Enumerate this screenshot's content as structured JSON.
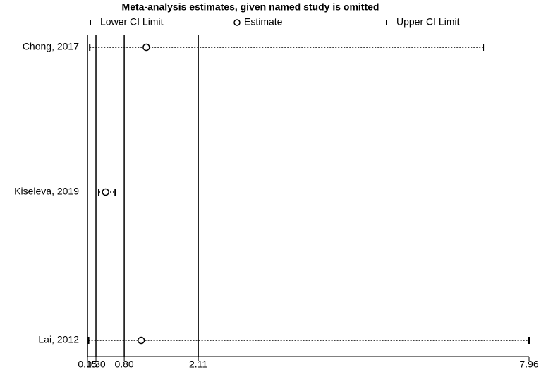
{
  "chart_data": {
    "type": "sensitivity",
    "title": "Meta-analysis estimates, given named study is omitted",
    "categories": [
      "Chong, 2017",
      "Kiseleva, 2019",
      "Lai, 2012"
    ],
    "series": [
      {
        "name": "Lower CI Limit",
        "color": "#000000",
        "values": [
          0.19,
          0.35,
          0.17
        ]
      },
      {
        "name": "Estimate",
        "color": "#000000",
        "values": [
          1.19,
          0.47,
          1.1
        ]
      },
      {
        "name": "Upper CI Limit",
        "color": "#000000",
        "values": [
          7.15,
          0.64,
          7.96
        ]
      }
    ],
    "xlim": [
      0.15,
      7.96
    ],
    "xticks": [
      0.15,
      {
        "value": 0.3,
        "label": "0.30"
      },
      {
        "value": 0.8,
        "label": "0.80"
      },
      2.11,
      7.96
    ],
    "vlines": [
      0.15,
      0.3,
      0.8,
      2.11
    ]
  }
}
